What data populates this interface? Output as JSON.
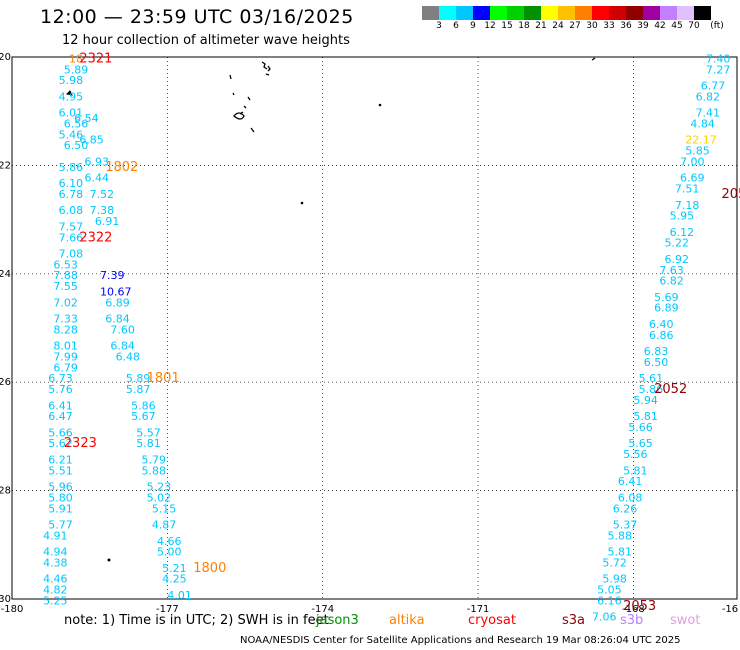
{
  "header": {
    "title": "12:00 — 23:59 UTC 03/16/2025",
    "subtitle": "12 hour collection of altimeter wave heights"
  },
  "legend": {
    "unit": "(ft)",
    "colors": [
      "#808080",
      "#00ffff",
      "#00c8ff",
      "#0000ff",
      "#00ff00",
      "#00d000",
      "#009000",
      "#ffff00",
      "#ffc000",
      "#ff8000",
      "#ff0000",
      "#d00000",
      "#900000",
      "#a000a0",
      "#c080ff",
      "#e0c0ff",
      "#000000"
    ],
    "ticks": [
      "3",
      "6",
      "9",
      "12",
      "15",
      "18",
      "21",
      "24",
      "27",
      "30",
      "33",
      "36",
      "39",
      "42",
      "45",
      "70"
    ]
  },
  "footer": {
    "note": "note:  1) Time is in UTC; 2) SWH is in feet",
    "satellites": [
      {
        "name": "jason3",
        "color": "#009000"
      },
      {
        "name": "altika",
        "color": "#ff8000"
      },
      {
        "name": "cryosat",
        "color": "#ff0000"
      },
      {
        "name": "s3a",
        "color": "#900000"
      },
      {
        "name": "s3b",
        "color": "#c080ff"
      },
      {
        "name": "swot",
        "color": "#e0a0e0"
      }
    ],
    "credit": "NOAA/NESDIS Center for Satellite Applications and Research    19 Mar 08:26:04 UTC 2025"
  },
  "chart_data": {
    "type": "scatter",
    "xlim": [
      -180,
      -166
    ],
    "ylim": [
      -30,
      -20
    ],
    "x_ticks": [
      "-180",
      "-177",
      "-174",
      "-171",
      "-168",
      "-16"
    ],
    "y_ticks": [
      "-20",
      "-22",
      "-24",
      "-26",
      "-28",
      "-30"
    ],
    "grid": true,
    "labels": [
      {
        "x": -178.9,
        "y": -20.1,
        "text": "18",
        "color": "#ff8000"
      },
      {
        "x": -178.7,
        "y": -20.1,
        "text": "2321",
        "color": "#ff0000"
      },
      {
        "x": -179.0,
        "y": -20.3,
        "text": "5.89",
        "color": "#00c8ff"
      },
      {
        "x": -179.1,
        "y": -20.5,
        "text": "5.98",
        "color": "#00c8ff"
      },
      {
        "x": -179.1,
        "y": -20.8,
        "text": "4.95",
        "color": "#00c8ff"
      },
      {
        "x": -179.1,
        "y": -21.1,
        "text": "6.01",
        "color": "#00c8ff"
      },
      {
        "x": -179.0,
        "y": -21.3,
        "text": "6.56",
        "color": "#00c8ff"
      },
      {
        "x": -179.1,
        "y": -21.5,
        "text": "5.46",
        "color": "#00c8ff"
      },
      {
        "x": -179.0,
        "y": -21.7,
        "text": "6.50",
        "color": "#00c8ff"
      },
      {
        "x": -178.8,
        "y": -21.2,
        "text": "6.54",
        "color": "#00c8ff"
      },
      {
        "x": -178.7,
        "y": -21.6,
        "text": "6.85",
        "color": "#00c8ff"
      },
      {
        "x": -179.1,
        "y": -22.1,
        "text": "5.86",
        "color": "#00c8ff"
      },
      {
        "x": -179.1,
        "y": -22.4,
        "text": "6.10",
        "color": "#00c8ff"
      },
      {
        "x": -179.1,
        "y": -22.6,
        "text": "6.78",
        "color": "#00c8ff"
      },
      {
        "x": -179.1,
        "y": -22.9,
        "text": "6.08",
        "color": "#00c8ff"
      },
      {
        "x": -179.1,
        "y": -23.2,
        "text": "7.57",
        "color": "#00c8ff"
      },
      {
        "x": -179.1,
        "y": -23.4,
        "text": "7.66",
        "color": "#00c8ff"
      },
      {
        "x": -179.1,
        "y": -23.7,
        "text": "7.08",
        "color": "#00c8ff"
      },
      {
        "x": -179.2,
        "y": -23.9,
        "text": "6.53",
        "color": "#00c8ff"
      },
      {
        "x": -179.2,
        "y": -24.1,
        "text": "7.88",
        "color": "#00c8ff"
      },
      {
        "x": -179.2,
        "y": -24.3,
        "text": "7.55",
        "color": "#00c8ff"
      },
      {
        "x": -179.2,
        "y": -24.6,
        "text": "7.02",
        "color": "#00c8ff"
      },
      {
        "x": -179.2,
        "y": -24.9,
        "text": "7.33",
        "color": "#00c8ff"
      },
      {
        "x": -179.2,
        "y": -25.1,
        "text": "8.28",
        "color": "#00c8ff"
      },
      {
        "x": -179.2,
        "y": -25.4,
        "text": "8.01",
        "color": "#00c8ff"
      },
      {
        "x": -179.2,
        "y": -25.6,
        "text": "7.99",
        "color": "#00c8ff"
      },
      {
        "x": -179.2,
        "y": -25.8,
        "text": "6.79",
        "color": "#00c8ff"
      },
      {
        "x": -179.3,
        "y": -26.0,
        "text": "6.73",
        "color": "#00c8ff"
      },
      {
        "x": -179.3,
        "y": -26.2,
        "text": "5.76",
        "color": "#00c8ff"
      },
      {
        "x": -179.3,
        "y": -26.5,
        "text": "6.41",
        "color": "#00c8ff"
      },
      {
        "x": -179.3,
        "y": -26.7,
        "text": "6.47",
        "color": "#00c8ff"
      },
      {
        "x": -179.3,
        "y": -27.0,
        "text": "5.66",
        "color": "#00c8ff"
      },
      {
        "x": -179.3,
        "y": -27.2,
        "text": "5.62",
        "color": "#00c8ff"
      },
      {
        "x": -179.3,
        "y": -27.5,
        "text": "6.21",
        "color": "#00c8ff"
      },
      {
        "x": -179.3,
        "y": -27.7,
        "text": "5.51",
        "color": "#00c8ff"
      },
      {
        "x": -179.3,
        "y": -28.0,
        "text": "5.96",
        "color": "#00c8ff"
      },
      {
        "x": -179.3,
        "y": -28.2,
        "text": "5.80",
        "color": "#00c8ff"
      },
      {
        "x": -179.3,
        "y": -28.4,
        "text": "5.91",
        "color": "#00c8ff"
      },
      {
        "x": -179.3,
        "y": -28.7,
        "text": "5.77",
        "color": "#00c8ff"
      },
      {
        "x": -179.4,
        "y": -28.9,
        "text": "4.91",
        "color": "#00c8ff"
      },
      {
        "x": -179.4,
        "y": -29.2,
        "text": "4.94",
        "color": "#00c8ff"
      },
      {
        "x": -179.4,
        "y": -29.4,
        "text": "4.38",
        "color": "#00c8ff"
      },
      {
        "x": -179.4,
        "y": -29.7,
        "text": "4.46",
        "color": "#00c8ff"
      },
      {
        "x": -179.4,
        "y": -29.9,
        "text": "4.82",
        "color": "#00c8ff"
      },
      {
        "x": -179.4,
        "y": -30.1,
        "text": "5.25",
        "color": "#00c8ff"
      },
      {
        "x": -178.6,
        "y": -22.0,
        "text": "6.93",
        "color": "#00c8ff"
      },
      {
        "x": -178.6,
        "y": -22.3,
        "text": "6.44",
        "color": "#00c8ff"
      },
      {
        "x": -178.5,
        "y": -22.6,
        "text": "7.52",
        "color": "#00c8ff"
      },
      {
        "x": -178.5,
        "y": -22.9,
        "text": "7.38",
        "color": "#00c8ff"
      },
      {
        "x": -178.4,
        "y": -23.1,
        "text": "6.91",
        "color": "#00c8ff"
      },
      {
        "x": -178.2,
        "y": -22.1,
        "text": "1802",
        "color": "#ff8000"
      },
      {
        "x": -178.7,
        "y": -23.4,
        "text": "2322",
        "color": "#ff0000"
      },
      {
        "x": -178.3,
        "y": -24.1,
        "text": "7.39",
        "color": "#0000ff"
      },
      {
        "x": -178.3,
        "y": -24.4,
        "text": "10.67",
        "color": "#0000ff"
      },
      {
        "x": -178.2,
        "y": -24.6,
        "text": "6.89",
        "color": "#00c8ff"
      },
      {
        "x": -178.2,
        "y": -24.9,
        "text": "6.84",
        "color": "#00c8ff"
      },
      {
        "x": -178.1,
        "y": -25.1,
        "text": "7.60",
        "color": "#00c8ff"
      },
      {
        "x": -178.1,
        "y": -25.4,
        "text": "6.84",
        "color": "#00c8ff"
      },
      {
        "x": -178.0,
        "y": -25.6,
        "text": "6.48",
        "color": "#00c8ff"
      },
      {
        "x": -177.8,
        "y": -26.0,
        "text": "5.89",
        "color": "#00c8ff"
      },
      {
        "x": -177.8,
        "y": -26.2,
        "text": "5.87",
        "color": "#00c8ff"
      },
      {
        "x": -177.7,
        "y": -26.5,
        "text": "5.86",
        "color": "#00c8ff"
      },
      {
        "x": -177.7,
        "y": -26.7,
        "text": "5.67",
        "color": "#00c8ff"
      },
      {
        "x": -177.6,
        "y": -27.0,
        "text": "5.57",
        "color": "#00c8ff"
      },
      {
        "x": -177.6,
        "y": -27.2,
        "text": "5.81",
        "color": "#00c8ff"
      },
      {
        "x": -177.5,
        "y": -27.5,
        "text": "5.79",
        "color": "#00c8ff"
      },
      {
        "x": -177.5,
        "y": -27.7,
        "text": "5.88",
        "color": "#00c8ff"
      },
      {
        "x": -177.4,
        "y": -28.0,
        "text": "5.23",
        "color": "#00c8ff"
      },
      {
        "x": -177.4,
        "y": -28.2,
        "text": "5.02",
        "color": "#00c8ff"
      },
      {
        "x": -177.3,
        "y": -28.4,
        "text": "5.15",
        "color": "#00c8ff"
      },
      {
        "x": -177.3,
        "y": -28.7,
        "text": "4.87",
        "color": "#00c8ff"
      },
      {
        "x": -177.2,
        "y": -29.0,
        "text": "4.66",
        "color": "#00c8ff"
      },
      {
        "x": -177.2,
        "y": -29.2,
        "text": "5.00",
        "color": "#00c8ff"
      },
      {
        "x": -177.1,
        "y": -29.5,
        "text": "5.21",
        "color": "#00c8ff"
      },
      {
        "x": -177.1,
        "y": -29.7,
        "text": "4.25",
        "color": "#00c8ff"
      },
      {
        "x": -177.0,
        "y": -30.0,
        "text": "4.01",
        "color": "#00c8ff"
      },
      {
        "x": -177.4,
        "y": -26.0,
        "text": "1801",
        "color": "#ff8000"
      },
      {
        "x": -176.5,
        "y": -29.5,
        "text": "1800",
        "color": "#ff8000"
      },
      {
        "x": -179.0,
        "y": -27.2,
        "text": "2323",
        "color": "#ff0000"
      },
      {
        "x": -166.6,
        "y": -20.1,
        "text": "7.40",
        "color": "#00c8ff"
      },
      {
        "x": -166.6,
        "y": -20.3,
        "text": "7.27",
        "color": "#00c8ff"
      },
      {
        "x": -166.7,
        "y": -20.6,
        "text": "6.77",
        "color": "#00c8ff"
      },
      {
        "x": -166.8,
        "y": -20.8,
        "text": "6.82",
        "color": "#00c8ff"
      },
      {
        "x": -166.8,
        "y": -21.1,
        "text": "7.41",
        "color": "#00c8ff"
      },
      {
        "x": -166.9,
        "y": -21.3,
        "text": "4.84",
        "color": "#00c8ff"
      },
      {
        "x": -167.0,
        "y": -21.6,
        "text": "22.17",
        "color": "#ffd000"
      },
      {
        "x": -167.0,
        "y": -21.8,
        "text": "5.85",
        "color": "#00c8ff"
      },
      {
        "x": -167.1,
        "y": -22.0,
        "text": "7.00",
        "color": "#00c8ff"
      },
      {
        "x": -167.1,
        "y": -22.3,
        "text": "6.69",
        "color": "#00c8ff"
      },
      {
        "x": -167.2,
        "y": -22.5,
        "text": "7.51",
        "color": "#00c8ff"
      },
      {
        "x": -167.2,
        "y": -22.8,
        "text": "7.18",
        "color": "#00c8ff"
      },
      {
        "x": -167.3,
        "y": -23.0,
        "text": "5.95",
        "color": "#00c8ff"
      },
      {
        "x": -167.3,
        "y": -23.3,
        "text": "6.12",
        "color": "#00c8ff"
      },
      {
        "x": -167.4,
        "y": -23.5,
        "text": "5.22",
        "color": "#00c8ff"
      },
      {
        "x": -167.4,
        "y": -23.8,
        "text": "6.92",
        "color": "#00c8ff"
      },
      {
        "x": -167.5,
        "y": -24.0,
        "text": "7.63",
        "color": "#00c8ff"
      },
      {
        "x": -167.5,
        "y": -24.2,
        "text": "6.82",
        "color": "#00c8ff"
      },
      {
        "x": -167.6,
        "y": -24.5,
        "text": "5.69",
        "color": "#00c8ff"
      },
      {
        "x": -167.6,
        "y": -24.7,
        "text": "6.89",
        "color": "#00c8ff"
      },
      {
        "x": -167.7,
        "y": -25.0,
        "text": "6.40",
        "color": "#00c8ff"
      },
      {
        "x": -167.7,
        "y": -25.2,
        "text": "6.86",
        "color": "#00c8ff"
      },
      {
        "x": -167.8,
        "y": -25.5,
        "text": "6.83",
        "color": "#00c8ff"
      },
      {
        "x": -167.8,
        "y": -25.7,
        "text": "6.50",
        "color": "#00c8ff"
      },
      {
        "x": -167.9,
        "y": -26.0,
        "text": "5.61",
        "color": "#00c8ff"
      },
      {
        "x": -167.9,
        "y": -26.2,
        "text": "5.86",
        "color": "#00c8ff"
      },
      {
        "x": -168.0,
        "y": -26.4,
        "text": "5.94",
        "color": "#00c8ff"
      },
      {
        "x": -168.0,
        "y": -26.7,
        "text": "5.81",
        "color": "#00c8ff"
      },
      {
        "x": -168.1,
        "y": -26.9,
        "text": "5.66",
        "color": "#00c8ff"
      },
      {
        "x": -168.1,
        "y": -27.2,
        "text": "5.65",
        "color": "#00c8ff"
      },
      {
        "x": -168.2,
        "y": -27.4,
        "text": "5.56",
        "color": "#00c8ff"
      },
      {
        "x": -168.2,
        "y": -27.7,
        "text": "5.81",
        "color": "#00c8ff"
      },
      {
        "x": -168.3,
        "y": -27.9,
        "text": "6.41",
        "color": "#00c8ff"
      },
      {
        "x": -168.3,
        "y": -28.2,
        "text": "6.08",
        "color": "#00c8ff"
      },
      {
        "x": -168.4,
        "y": -28.4,
        "text": "6.26",
        "color": "#00c8ff"
      },
      {
        "x": -168.4,
        "y": -28.7,
        "text": "5.37",
        "color": "#00c8ff"
      },
      {
        "x": -168.5,
        "y": -28.9,
        "text": "5.88",
        "color": "#00c8ff"
      },
      {
        "x": -168.5,
        "y": -29.2,
        "text": "5.81",
        "color": "#00c8ff"
      },
      {
        "x": -168.6,
        "y": -29.4,
        "text": "5.72",
        "color": "#00c8ff"
      },
      {
        "x": -168.6,
        "y": -29.7,
        "text": "5.98",
        "color": "#00c8ff"
      },
      {
        "x": -168.7,
        "y": -29.9,
        "text": "5.05",
        "color": "#00c8ff"
      },
      {
        "x": -168.7,
        "y": -30.1,
        "text": "6.16",
        "color": "#00c8ff"
      },
      {
        "x": -168.8,
        "y": -30.4,
        "text": "7.06",
        "color": "#00c8ff"
      },
      {
        "x": -166.3,
        "y": -22.6,
        "text": "205",
        "color": "#900000"
      },
      {
        "x": -167.6,
        "y": -26.2,
        "text": "2052",
        "color": "#900000"
      },
      {
        "x": -168.2,
        "y": -30.2,
        "text": "2053",
        "color": "#900000"
      }
    ]
  }
}
